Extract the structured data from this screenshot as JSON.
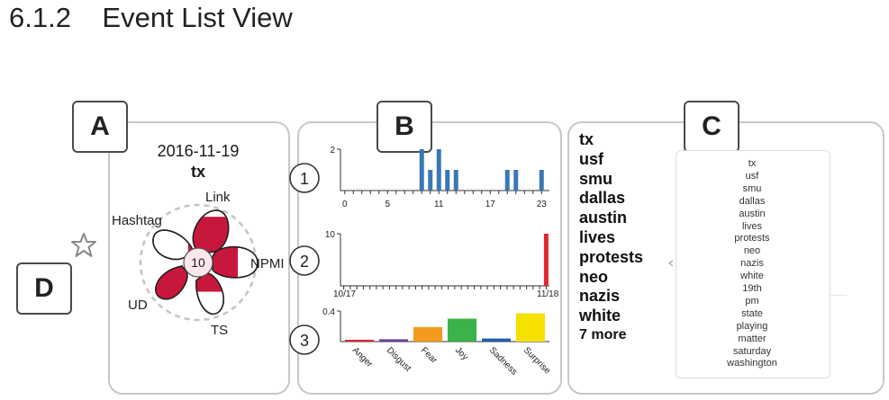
{
  "heading": "6.1.2    Event List View",
  "callouts": {
    "a": "A",
    "b": "B",
    "c": "C",
    "d": "D"
  },
  "event": {
    "date": "2016-11-19",
    "term": "tx",
    "center_value": "10",
    "petals": {
      "link": {
        "label": "Link",
        "fill": 0.85
      },
      "npmi": {
        "label": "NPMI",
        "fill": 0.55
      },
      "ts": {
        "label": "TS",
        "fill": 0.45
      },
      "ud": {
        "label": "UD",
        "fill": 0.9
      },
      "hashtag": {
        "label": "Hashtag",
        "fill": 0.15
      }
    }
  },
  "charts": {
    "hourly": {
      "badge": "1",
      "y_max_label": "2",
      "x_tick_labels": [
        "0",
        "5",
        "11",
        "17",
        "23"
      ],
      "hours": [
        0,
        1,
        2,
        3,
        4,
        5,
        6,
        7,
        8,
        9,
        10,
        11,
        12,
        13,
        14,
        15,
        16,
        17,
        18,
        19,
        20,
        21,
        22,
        23
      ],
      "values": [
        0,
        0,
        0,
        0,
        0,
        0,
        0,
        0,
        0,
        2,
        1,
        2,
        1,
        1,
        0,
        0,
        0,
        0,
        0,
        1,
        1,
        0,
        0,
        1
      ],
      "color": "#3a78b5"
    },
    "daily": {
      "badge": "2",
      "y_max_label": "10",
      "x_start_label": "10/17",
      "x_end_label": "11/18",
      "values": [
        0,
        0,
        0,
        0,
        0,
        0,
        0,
        0,
        0,
        0,
        0,
        0,
        0,
        0,
        0,
        0,
        0,
        0,
        0,
        0,
        0,
        0,
        0,
        0,
        0,
        0,
        0,
        0,
        0,
        0,
        0,
        10
      ],
      "color": "#e0262e"
    },
    "emotion": {
      "badge": "3",
      "y_max_label": "0.4",
      "categories": [
        "Anger",
        "Disgust",
        "Fear",
        "Joy",
        "Sadness",
        "Surprise"
      ],
      "values": [
        0.02,
        0.03,
        0.19,
        0.3,
        0.04,
        0.37
      ],
      "colors": [
        "#e0262e",
        "#6a3d9a",
        "#f39a1f",
        "#3cb24a",
        "#1f5fb0",
        "#f5e000"
      ]
    }
  },
  "keywords": [
    "tx",
    "usf",
    "smu",
    "dallas",
    "austin",
    "lives",
    "protests",
    "neo",
    "nazis",
    "white",
    "7 more"
  ],
  "word_cloud": [
    "tx",
    "usf",
    "smu",
    "dallas",
    "austin",
    "lives",
    "protests",
    "neo",
    "nazis",
    "white",
    "19th",
    "pm",
    "state",
    "playing",
    "matter",
    "saturday",
    "washington"
  ]
}
